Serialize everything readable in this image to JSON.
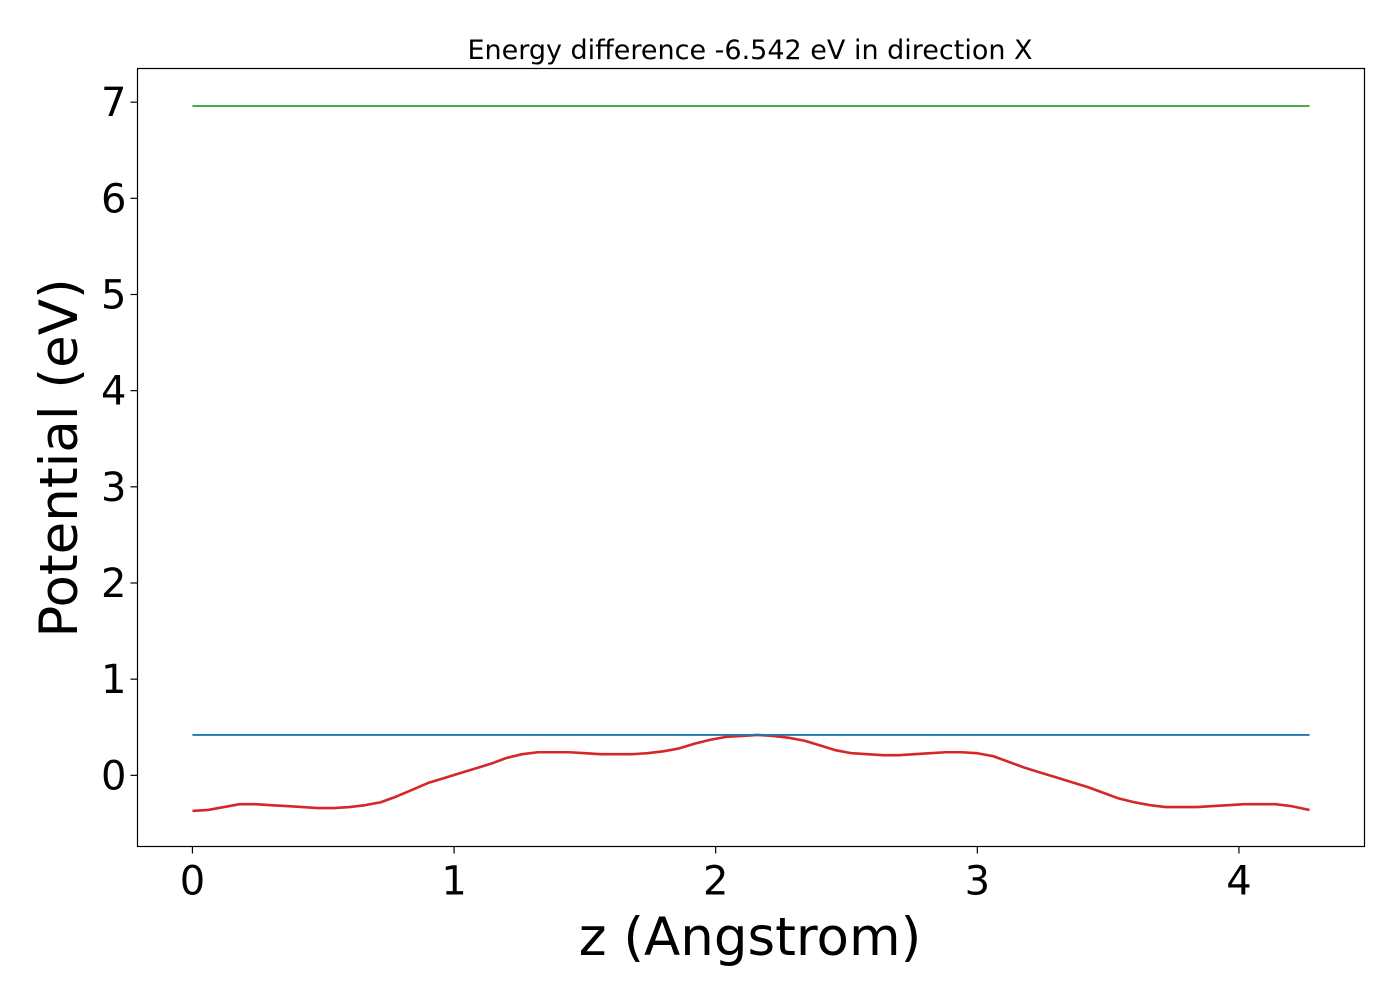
{
  "chart_data": {
    "type": "line",
    "title": "Energy difference -6.542 eV in direction X",
    "xlabel": "z (Angstrom)",
    "ylabel": "Potential (eV)",
    "xlim": [
      -0.21,
      4.48
    ],
    "ylim": [
      -0.74,
      7.35
    ],
    "xticks": [
      0,
      1,
      2,
      3,
      4
    ],
    "yticks": [
      0,
      1,
      2,
      3,
      4,
      5,
      6,
      7
    ],
    "xtick_labels": [
      "0",
      "1",
      "2",
      "3",
      "4"
    ],
    "ytick_labels": [
      "0",
      "1",
      "2",
      "3",
      "4",
      "5",
      "6",
      "7"
    ],
    "grid": false,
    "legend": "none",
    "series": [
      {
        "color": "#d62728",
        "x": [
          0.0,
          0.06,
          0.12,
          0.18,
          0.24,
          0.3,
          0.36,
          0.42,
          0.48,
          0.54,
          0.6,
          0.66,
          0.72,
          0.78,
          0.84,
          0.9,
          0.96,
          1.02,
          1.08,
          1.14,
          1.2,
          1.26,
          1.32,
          1.38,
          1.44,
          1.5,
          1.56,
          1.62,
          1.68,
          1.74,
          1.8,
          1.86,
          1.92,
          1.98,
          2.04,
          2.1,
          2.16,
          2.22,
          2.28,
          2.34,
          2.4,
          2.46,
          2.52,
          2.58,
          2.64,
          2.7,
          2.76,
          2.82,
          2.88,
          2.94,
          3.0,
          3.06,
          3.12,
          3.18,
          3.24,
          3.3,
          3.36,
          3.42,
          3.48,
          3.54,
          3.6,
          3.66,
          3.72,
          3.78,
          3.84,
          3.9,
          3.96,
          4.02,
          4.08,
          4.14,
          4.2,
          4.27
        ],
        "y": [
          -0.37,
          -0.36,
          -0.33,
          -0.3,
          -0.3,
          -0.31,
          -0.32,
          -0.33,
          -0.34,
          -0.34,
          -0.33,
          -0.31,
          -0.28,
          -0.22,
          -0.15,
          -0.08,
          -0.03,
          0.02,
          0.07,
          0.12,
          0.18,
          0.22,
          0.24,
          0.24,
          0.24,
          0.23,
          0.22,
          0.22,
          0.22,
          0.23,
          0.25,
          0.28,
          0.33,
          0.37,
          0.4,
          0.41,
          0.42,
          0.41,
          0.39,
          0.36,
          0.31,
          0.26,
          0.23,
          0.22,
          0.21,
          0.21,
          0.22,
          0.23,
          0.24,
          0.24,
          0.23,
          0.2,
          0.14,
          0.08,
          0.03,
          -0.02,
          -0.07,
          -0.12,
          -0.18,
          -0.24,
          -0.28,
          -0.31,
          -0.33,
          -0.33,
          -0.33,
          -0.32,
          -0.31,
          -0.3,
          -0.3,
          -0.3,
          -0.32,
          -0.36
        ]
      },
      {
        "color": "#1f77b4",
        "x": [
          0.0,
          4.27
        ],
        "y": [
          0.42,
          0.42
        ]
      },
      {
        "color": "#2ca02c",
        "x": [
          0.0,
          4.27
        ],
        "y": [
          6.96,
          6.96
        ]
      }
    ]
  }
}
